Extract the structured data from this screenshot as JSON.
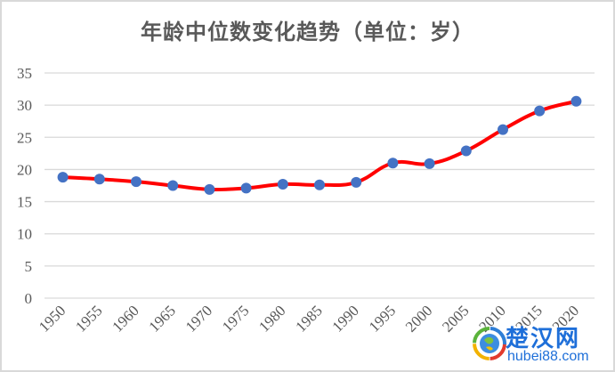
{
  "title": "年龄中位数变化趋势（单位：岁）",
  "colors": {
    "line": "#ff0000",
    "marker": "#4472c4",
    "grid": "#d9d9d9",
    "text": "#595959",
    "border": "#d9d9d9"
  },
  "watermark": {
    "name": "楚汉网",
    "url_text": "hubei88.com",
    "icon": "globe-logo-icon"
  },
  "chart_data": {
    "type": "line",
    "title": "年龄中位数变化趋势（单位：岁）",
    "xlabel": "",
    "ylabel": "",
    "categories": [
      "1950",
      "1955",
      "1960",
      "1965",
      "1970",
      "1975",
      "1980",
      "1985",
      "1990",
      "1995",
      "2000",
      "2005",
      "2010",
      "2015",
      "2020"
    ],
    "series": [
      {
        "name": "年龄中位数",
        "values": [
          18.8,
          18.5,
          18.1,
          17.5,
          16.9,
          17.1,
          17.7,
          17.6,
          18.0,
          21.0,
          20.9,
          22.9,
          26.2,
          29.1,
          30.6
        ],
        "smooth": true,
        "line_color": "#ff0000",
        "marker_color": "#4472c4"
      }
    ],
    "ylim": [
      0,
      35
    ],
    "yticks": [
      "0",
      "5",
      "10",
      "15",
      "20",
      "25",
      "30",
      "35"
    ],
    "grid": "horizontal",
    "legend": "none"
  }
}
